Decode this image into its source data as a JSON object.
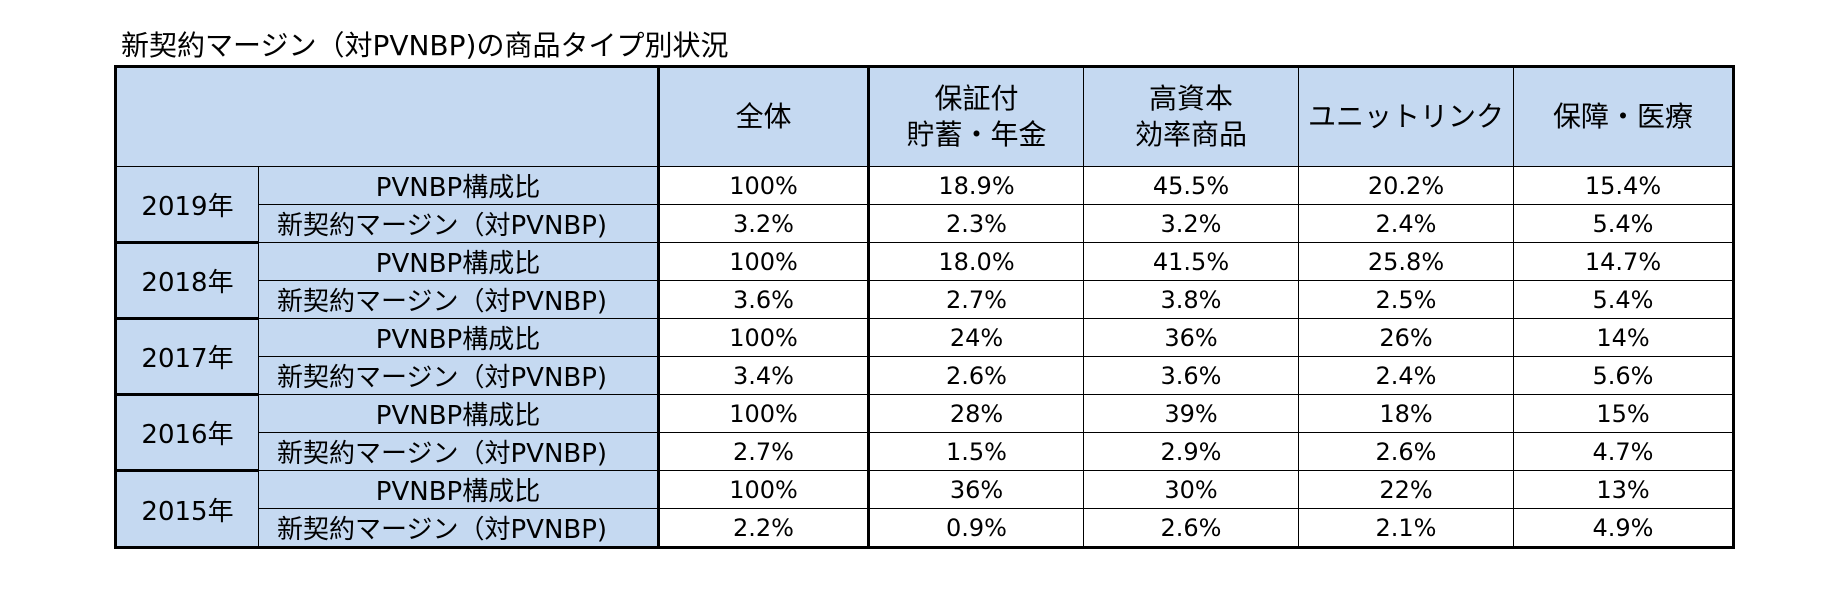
{
  "title": "新契約マージン（対PVNBP)の商品タイプ別状況",
  "columns": [
    "全体",
    "保証付\n貯蓄・年金",
    "高資本\n効率商品",
    "ユニットリンク",
    "保障・医療"
  ],
  "column_lines": [
    [
      "全体"
    ],
    [
      "保証付",
      "貯蓄・年金"
    ],
    [
      "高資本",
      "効率商品"
    ],
    [
      "ユニットリンク"
    ],
    [
      "保障・医療"
    ]
  ],
  "row_labels": {
    "share": "PVNBP構成比",
    "margin": "新契約マージン（対PVNBP)"
  },
  "years": [
    {
      "year": "2019年",
      "share": [
        "100%",
        "18.9%",
        "45.5%",
        "20.2%",
        "15.4%"
      ],
      "margin": [
        "3.2%",
        "2.3%",
        "3.2%",
        "2.4%",
        "5.4%"
      ]
    },
    {
      "year": "2018年",
      "share": [
        "100%",
        "18.0%",
        "41.5%",
        "25.8%",
        "14.7%"
      ],
      "margin": [
        "3.6%",
        "2.7%",
        "3.8%",
        "2.5%",
        "5.4%"
      ]
    },
    {
      "year": "2017年",
      "share": [
        "100%",
        "24%",
        "36%",
        "26%",
        "14%"
      ],
      "margin": [
        "3.4%",
        "2.6%",
        "3.6%",
        "2.4%",
        "5.6%"
      ]
    },
    {
      "year": "2016年",
      "share": [
        "100%",
        "28%",
        "39%",
        "18%",
        "15%"
      ],
      "margin": [
        "2.7%",
        "1.5%",
        "2.9%",
        "2.6%",
        "4.7%"
      ]
    },
    {
      "year": "2015年",
      "share": [
        "100%",
        "36%",
        "30%",
        "22%",
        "13%"
      ],
      "margin": [
        "2.2%",
        "0.9%",
        "2.6%",
        "2.1%",
        "4.9%"
      ]
    }
  ],
  "colors": {
    "header_fill": "#c5d9f1",
    "border": "#000000",
    "cell_fill": "#ffffff"
  }
}
